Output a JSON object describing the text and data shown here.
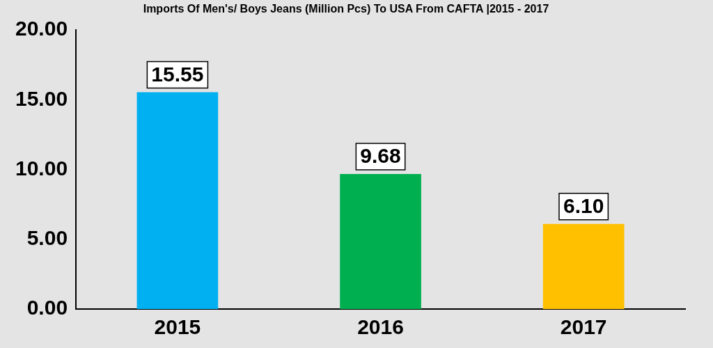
{
  "chart_data": {
    "type": "bar",
    "title": "Imports Of Men's/ Boys Jeans (Million Pcs) To USA From CAFTA |2015 - 2017",
    "categories": [
      "2015",
      "2016",
      "2017"
    ],
    "values": [
      15.55,
      9.68,
      6.1
    ],
    "colors": [
      "#00b0f0",
      "#00b050",
      "#ffc000"
    ],
    "value_labels": [
      "15.55",
      "9.68",
      "6.10"
    ],
    "ylim": [
      0,
      20
    ],
    "yticks": [
      {
        "value": 0,
        "label": "0.00"
      },
      {
        "value": 5,
        "label": "5.00"
      },
      {
        "value": 10,
        "label": "10.00"
      },
      {
        "value": 15,
        "label": "15.00"
      },
      {
        "value": 20,
        "label": "20.00"
      }
    ],
    "grid": false,
    "legend": false
  }
}
